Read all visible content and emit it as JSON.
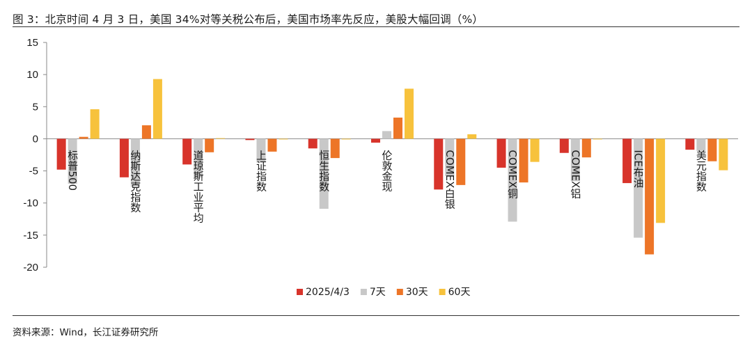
{
  "header": {
    "title": "图 3：北京时间 4 月 3 日，美国 34%对等关税公布后，美国市场率先反应，美股大幅回调（%）"
  },
  "footer": {
    "source": "资料来源：Wind，长江证券研究所"
  },
  "chart_data": {
    "type": "bar",
    "title": "北京时间 4 月 3 日，美国 34%对等关税公布后，美国市场率先反应，美股大幅回调（%）",
    "xlabel": "",
    "ylabel": "%",
    "ylim": [
      -20,
      15
    ],
    "yticks": [
      15,
      10,
      5,
      0,
      -5,
      -10,
      -15,
      -20
    ],
    "legend_position": "bottom-center",
    "categories": [
      "标普500",
      "纳斯达克指数",
      "道琼斯工业平均",
      "上证指数",
      "恒生指数",
      "伦敦金现",
      "COMEX白银",
      "COMEX铜",
      "COMEX铝",
      "ICE布油",
      "美元指数"
    ],
    "series": [
      {
        "name": "2025/4/3",
        "color": "#d8342b",
        "values": [
          -4.8,
          -6.0,
          -4.0,
          -0.2,
          -1.5,
          -0.6,
          -7.9,
          -4.5,
          -2.2,
          -6.9,
          -1.7
        ]
      },
      {
        "name": "7天",
        "color": "#c8c8c8",
        "values": [
          -7.0,
          -7.5,
          -6.0,
          -3.7,
          -10.9,
          1.2,
          -5.8,
          -12.9,
          -6.6,
          -15.4,
          -1.9
        ]
      },
      {
        "name": "30天",
        "color": "#ed7527",
        "values": [
          0.3,
          2.1,
          -2.1,
          -2.0,
          -3.0,
          3.3,
          -7.2,
          -6.8,
          -2.9,
          -18.0,
          -3.5
        ]
      },
      {
        "name": "60天",
        "color": "#f7c23c",
        "values": [
          4.6,
          9.3,
          0.1,
          -0.1,
          -0.1,
          7.8,
          0.7,
          -3.6,
          -0.1,
          -13.1,
          -4.9
        ]
      }
    ]
  }
}
